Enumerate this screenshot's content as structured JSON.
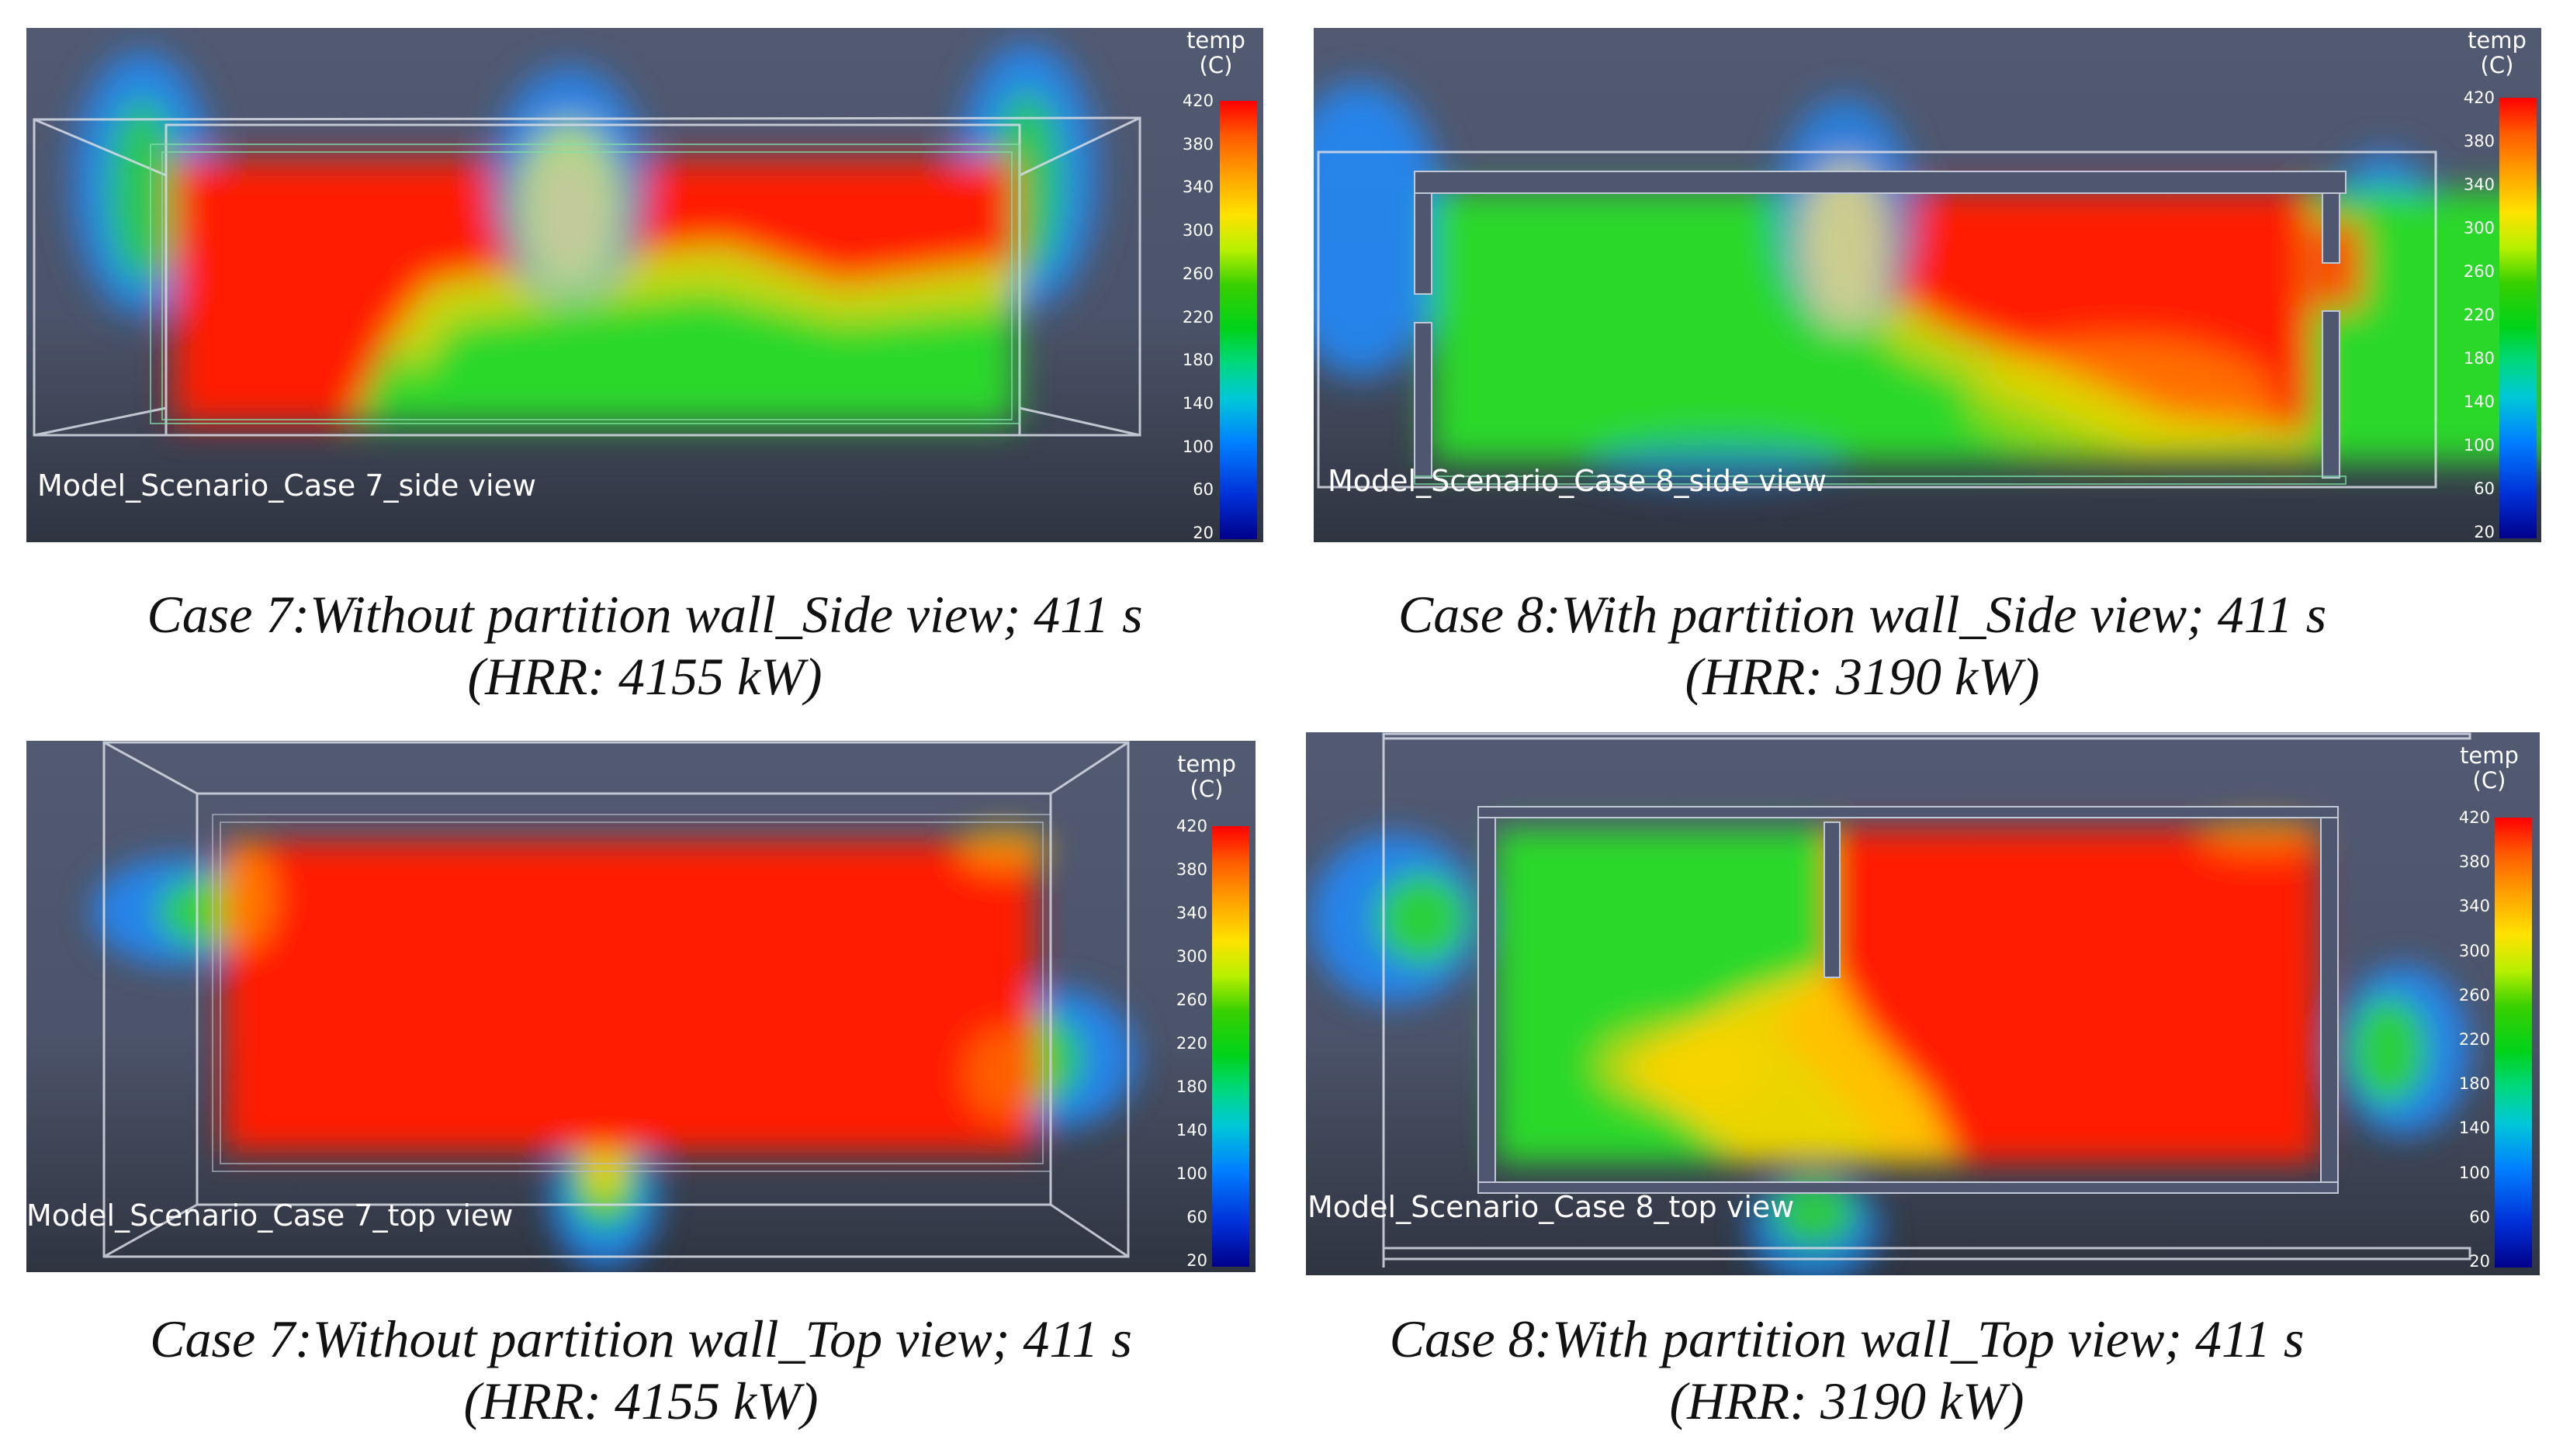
{
  "colorbar": {
    "title_line1": "temp",
    "title_line2": "(C)",
    "ticks": [
      "420",
      "380",
      "340",
      "300",
      "260",
      "220",
      "180",
      "140",
      "100",
      "60",
      "20"
    ],
    "min": 20,
    "max": 420
  },
  "panels": {
    "case7_side": {
      "label": "Model_Scenario_Case 7_side view",
      "caption_line1": "Case 7:Without partition wall_Side view; 411 s",
      "caption_line2": "(HRR: 4155 kW)"
    },
    "case8_side": {
      "label": "Model_Scenario_Case 8_side view",
      "caption_line1": "Case 8:With partition wall_Side view; 411 s",
      "caption_line2": "(HRR: 3190 kW)"
    },
    "case7_top": {
      "label": "Model_Scenario_Case 7_top view",
      "caption_line1": "Case 7:Without partition wall_Top view; 411 s",
      "caption_line2": "(HRR: 4155 kW)"
    },
    "case8_top": {
      "label": "Model_Scenario_Case 8_top view",
      "caption_line1": "Case 8:With partition wall_Top view; 411 s",
      "caption_line2": "(HRR: 3190 kW)"
    }
  },
  "colors": {
    "hot": "#ff1a00",
    "warm": "#ffd400",
    "cool": "#2bd82b",
    "cold": "#1e8cff",
    "background": "#4f5770"
  }
}
